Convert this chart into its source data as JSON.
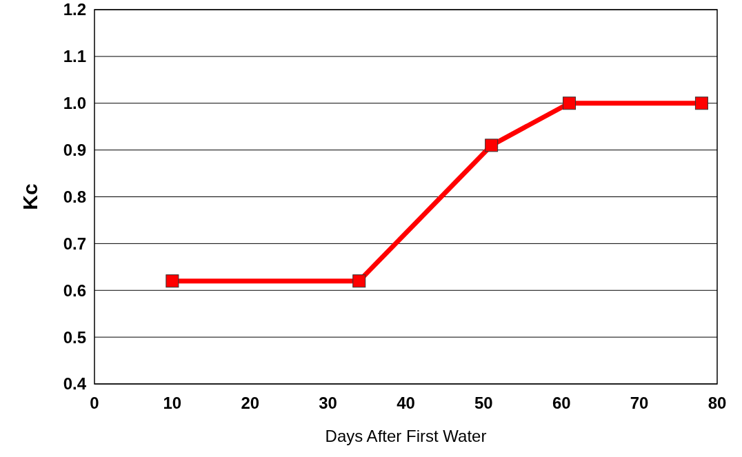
{
  "chart_data": {
    "type": "line",
    "xlabel": "Days After First Water",
    "ylabel": "Kc",
    "x": [
      10,
      34,
      51,
      61,
      78
    ],
    "series": [
      {
        "color": "#ff0000",
        "values": [
          0.62,
          0.62,
          0.91,
          1,
          1
        ]
      }
    ],
    "xlim": [
      0,
      80
    ],
    "xticks": [
      0,
      10,
      20,
      30,
      40,
      50,
      60,
      70,
      80
    ],
    "ylim": [
      0.4,
      1.2
    ],
    "yticks": [
      0.4,
      0.5,
      0.6,
      0.7,
      0.8,
      0.9,
      {
        "value": 1,
        "label": "1.0"
      },
      1.1,
      1.2
    ],
    "grid": "y",
    "marker": "square",
    "line_style": "solid"
  }
}
